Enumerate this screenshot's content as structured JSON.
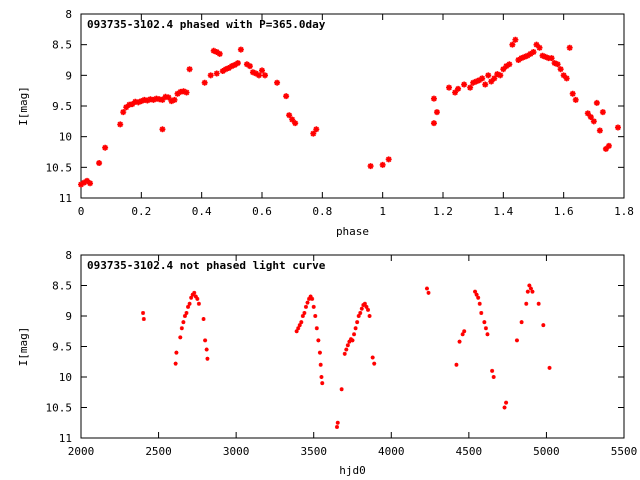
{
  "chart_data": [
    {
      "type": "scatter",
      "title": "093735-3102.4 phased with P=365.0day",
      "xlabel": "phase",
      "ylabel": "I[mag]",
      "xlim": [
        0,
        1.8
      ],
      "ylim": [
        11,
        8
      ],
      "y_inverted": true,
      "xticks": [
        "0",
        "0.2",
        "0.4",
        "0.6",
        "0.8",
        "1",
        "1.2",
        "1.4",
        "1.6",
        "1.8"
      ],
      "yticks": [
        "8",
        "8.5",
        "9",
        "9.5",
        "10",
        "10.5",
        "11"
      ],
      "marker_color": "#ff0000",
      "grid": false,
      "series": [
        {
          "points": [
            [
              0.0,
              10.78
            ],
            [
              0.01,
              10.75
            ],
            [
              0.02,
              10.72
            ],
            [
              0.03,
              10.76
            ],
            [
              0.06,
              10.43
            ],
            [
              0.08,
              10.18
            ],
            [
              0.13,
              9.8
            ],
            [
              0.14,
              9.6
            ],
            [
              0.15,
              9.52
            ],
            [
              0.16,
              9.48
            ],
            [
              0.17,
              9.47
            ],
            [
              0.18,
              9.43
            ],
            [
              0.19,
              9.44
            ],
            [
              0.2,
              9.42
            ],
            [
              0.21,
              9.4
            ],
            [
              0.22,
              9.41
            ],
            [
              0.23,
              9.39
            ],
            [
              0.24,
              9.4
            ],
            [
              0.25,
              9.38
            ],
            [
              0.26,
              9.39
            ],
            [
              0.27,
              9.4
            ],
            [
              0.27,
              9.88
            ],
            [
              0.28,
              9.35
            ],
            [
              0.29,
              9.36
            ],
            [
              0.3,
              9.42
            ],
            [
              0.31,
              9.4
            ],
            [
              0.32,
              9.3
            ],
            [
              0.33,
              9.27
            ],
            [
              0.34,
              9.26
            ],
            [
              0.35,
              9.28
            ],
            [
              0.36,
              8.9
            ],
            [
              0.41,
              9.12
            ],
            [
              0.43,
              9.0
            ],
            [
              0.44,
              8.6
            ],
            [
              0.45,
              8.62
            ],
            [
              0.45,
              8.97
            ],
            [
              0.46,
              8.65
            ],
            [
              0.47,
              8.93
            ],
            [
              0.48,
              8.9
            ],
            [
              0.49,
              8.88
            ],
            [
              0.5,
              8.85
            ],
            [
              0.51,
              8.83
            ],
            [
              0.52,
              8.8
            ],
            [
              0.53,
              8.58
            ],
            [
              0.55,
              8.82
            ],
            [
              0.56,
              8.85
            ],
            [
              0.57,
              8.95
            ],
            [
              0.58,
              8.97
            ],
            [
              0.59,
              9.0
            ],
            [
              0.6,
              8.92
            ],
            [
              0.61,
              9.0
            ],
            [
              0.65,
              9.12
            ],
            [
              0.68,
              9.34
            ],
            [
              0.69,
              9.65
            ],
            [
              0.7,
              9.72
            ],
            [
              0.71,
              9.78
            ],
            [
              0.77,
              9.95
            ],
            [
              0.78,
              9.88
            ],
            [
              0.96,
              10.48
            ],
            [
              1.0,
              10.46
            ],
            [
              1.02,
              10.37
            ],
            [
              1.17,
              9.78
            ],
            [
              1.17,
              9.38
            ],
            [
              1.18,
              9.6
            ],
            [
              1.22,
              9.2
            ],
            [
              1.24,
              9.28
            ],
            [
              1.25,
              9.22
            ],
            [
              1.27,
              9.15
            ],
            [
              1.29,
              9.2
            ],
            [
              1.3,
              9.12
            ],
            [
              1.31,
              9.1
            ],
            [
              1.32,
              9.08
            ],
            [
              1.33,
              9.05
            ],
            [
              1.34,
              9.15
            ],
            [
              1.35,
              9.0
            ],
            [
              1.36,
              9.1
            ],
            [
              1.37,
              9.05
            ],
            [
              1.38,
              8.98
            ],
            [
              1.39,
              9.0
            ],
            [
              1.4,
              8.9
            ],
            [
              1.41,
              8.85
            ],
            [
              1.42,
              8.82
            ],
            [
              1.43,
              8.5
            ],
            [
              1.44,
              8.42
            ],
            [
              1.45,
              8.75
            ],
            [
              1.46,
              8.72
            ],
            [
              1.47,
              8.7
            ],
            [
              1.48,
              8.68
            ],
            [
              1.49,
              8.65
            ],
            [
              1.5,
              8.62
            ],
            [
              1.51,
              8.5
            ],
            [
              1.52,
              8.55
            ],
            [
              1.53,
              8.68
            ],
            [
              1.54,
              8.7
            ],
            [
              1.55,
              8.72
            ],
            [
              1.56,
              8.72
            ],
            [
              1.57,
              8.8
            ],
            [
              1.58,
              8.82
            ],
            [
              1.59,
              8.9
            ],
            [
              1.6,
              9.0
            ],
            [
              1.61,
              9.05
            ],
            [
              1.62,
              8.55
            ],
            [
              1.63,
              9.3
            ],
            [
              1.64,
              9.4
            ],
            [
              1.68,
              9.62
            ],
            [
              1.69,
              9.68
            ],
            [
              1.7,
              9.75
            ],
            [
              1.71,
              9.45
            ],
            [
              1.72,
              9.9
            ],
            [
              1.73,
              9.6
            ],
            [
              1.74,
              10.2
            ],
            [
              1.75,
              10.15
            ],
            [
              1.78,
              9.85
            ]
          ]
        }
      ]
    },
    {
      "type": "scatter",
      "title": "093735-3102.4 not phased light curve",
      "xlabel": "hjd0",
      "ylabel": "I[mag]",
      "xlim": [
        2000,
        5500
      ],
      "ylim": [
        11,
        8
      ],
      "y_inverted": true,
      "xticks": [
        "2000",
        "2500",
        "3000",
        "3500",
        "4000",
        "4500",
        "5000",
        "5500"
      ],
      "yticks": [
        "8",
        "8.5",
        "9",
        "9.5",
        "10",
        "10.5",
        "11"
      ],
      "marker_color": "#ff0000",
      "grid": false,
      "series": [
        {
          "points": [
            [
              2400,
              8.95
            ],
            [
              2405,
              9.05
            ],
            [
              2610,
              9.78
            ],
            [
              2615,
              9.6
            ],
            [
              2640,
              9.35
            ],
            [
              2650,
              9.2
            ],
            [
              2660,
              9.1
            ],
            [
              2670,
              9.0
            ],
            [
              2680,
              8.95
            ],
            [
              2690,
              8.85
            ],
            [
              2700,
              8.8
            ],
            [
              2710,
              8.7
            ],
            [
              2720,
              8.65
            ],
            [
              2730,
              8.62
            ],
            [
              2740,
              8.68
            ],
            [
              2750,
              8.72
            ],
            [
              2760,
              8.8
            ],
            [
              2790,
              9.05
            ],
            [
              2800,
              9.4
            ],
            [
              2810,
              9.55
            ],
            [
              2815,
              9.7
            ],
            [
              3390,
              9.25
            ],
            [
              3400,
              9.2
            ],
            [
              3410,
              9.15
            ],
            [
              3420,
              9.1
            ],
            [
              3430,
              9.0
            ],
            [
              3440,
              8.95
            ],
            [
              3450,
              8.85
            ],
            [
              3460,
              8.78
            ],
            [
              3470,
              8.72
            ],
            [
              3480,
              8.68
            ],
            [
              3490,
              8.72
            ],
            [
              3500,
              8.85
            ],
            [
              3510,
              9.0
            ],
            [
              3520,
              9.2
            ],
            [
              3530,
              9.4
            ],
            [
              3540,
              9.6
            ],
            [
              3545,
              9.8
            ],
            [
              3550,
              10.0
            ],
            [
              3555,
              10.1
            ],
            [
              3650,
              10.82
            ],
            [
              3655,
              10.75
            ],
            [
              3680,
              10.2
            ],
            [
              3700,
              9.62
            ],
            [
              3710,
              9.55
            ],
            [
              3720,
              9.48
            ],
            [
              3730,
              9.42
            ],
            [
              3740,
              9.38
            ],
            [
              3750,
              9.4
            ],
            [
              3760,
              9.3
            ],
            [
              3770,
              9.2
            ],
            [
              3780,
              9.1
            ],
            [
              3790,
              9.0
            ],
            [
              3800,
              8.95
            ],
            [
              3810,
              8.88
            ],
            [
              3820,
              8.82
            ],
            [
              3830,
              8.8
            ],
            [
              3840,
              8.85
            ],
            [
              3850,
              8.9
            ],
            [
              3860,
              9.0
            ],
            [
              3880,
              9.68
            ],
            [
              3890,
              9.78
            ],
            [
              4230,
              8.55
            ],
            [
              4240,
              8.62
            ],
            [
              4420,
              9.8
            ],
            [
              4440,
              9.42
            ],
            [
              4460,
              9.3
            ],
            [
              4470,
              9.25
            ],
            [
              4540,
              8.6
            ],
            [
              4550,
              8.65
            ],
            [
              4560,
              8.7
            ],
            [
              4570,
              8.8
            ],
            [
              4580,
              8.95
            ],
            [
              4600,
              9.1
            ],
            [
              4610,
              9.2
            ],
            [
              4620,
              9.3
            ],
            [
              4650,
              9.9
            ],
            [
              4660,
              10.0
            ],
            [
              4730,
              10.5
            ],
            [
              4740,
              10.42
            ],
            [
              4810,
              9.4
            ],
            [
              4840,
              9.1
            ],
            [
              4870,
              8.8
            ],
            [
              4880,
              8.6
            ],
            [
              4890,
              8.5
            ],
            [
              4900,
              8.55
            ],
            [
              4910,
              8.6
            ],
            [
              4950,
              8.8
            ],
            [
              4980,
              9.15
            ],
            [
              5020,
              9.85
            ]
          ]
        }
      ]
    }
  ]
}
